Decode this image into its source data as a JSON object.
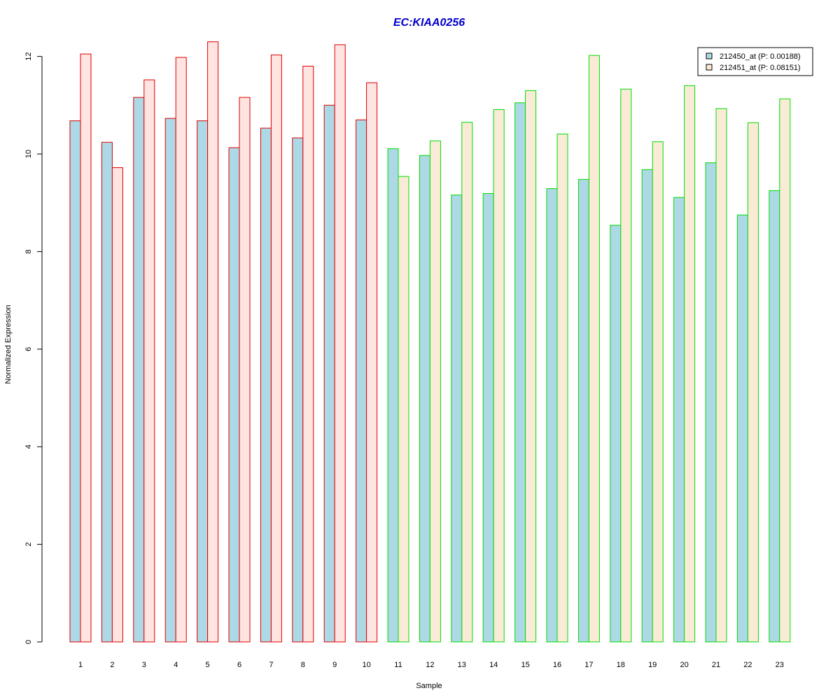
{
  "chart_data": {
    "type": "bar",
    "title": "EC:KIAA0256",
    "xlabel": "Sample",
    "ylabel": "Normalized Expression",
    "ylim": [
      0,
      12.5
    ],
    "yticks": [
      0,
      2,
      4,
      6,
      8,
      10,
      12
    ],
    "categories": [
      "1",
      "2",
      "3",
      "4",
      "5",
      "6",
      "7",
      "8",
      "9",
      "10",
      "11",
      "12",
      "13",
      "14",
      "15",
      "16",
      "17",
      "18",
      "19",
      "20",
      "21",
      "22",
      "23"
    ],
    "groups": [
      {
        "samples": [
          "1",
          "2",
          "3",
          "4",
          "5",
          "6",
          "7",
          "8",
          "9",
          "10"
        ],
        "border_color": "#dd0000"
      },
      {
        "samples": [
          "11",
          "12",
          "13",
          "14",
          "15",
          "16",
          "17",
          "18",
          "19",
          "20",
          "21",
          "22",
          "23"
        ],
        "border_color": "#00dd00"
      }
    ],
    "series": [
      {
        "name": "212450_at (P: 0.00188)",
        "fill": "#add8e6",
        "values": [
          10.68,
          10.24,
          11.16,
          10.73,
          10.68,
          10.13,
          10.53,
          10.33,
          11.0,
          10.7,
          10.11,
          9.97,
          9.16,
          9.19,
          11.05,
          9.29,
          9.48,
          8.54,
          9.68,
          9.11,
          9.82,
          8.75,
          9.25
        ]
      },
      {
        "name": "212451_at (P: 0.08151)",
        "fill_group1": "#ffe4e1",
        "fill_group2": "#faebd7",
        "values": [
          12.05,
          9.72,
          11.52,
          11.98,
          12.3,
          11.16,
          12.03,
          11.8,
          12.24,
          11.46,
          9.54,
          10.27,
          10.65,
          10.91,
          11.3,
          10.41,
          12.02,
          11.33,
          10.25,
          11.4,
          10.93,
          10.64,
          11.13
        ]
      }
    ],
    "legend": {
      "position": "top-right",
      "box": true
    },
    "grid": false
  }
}
